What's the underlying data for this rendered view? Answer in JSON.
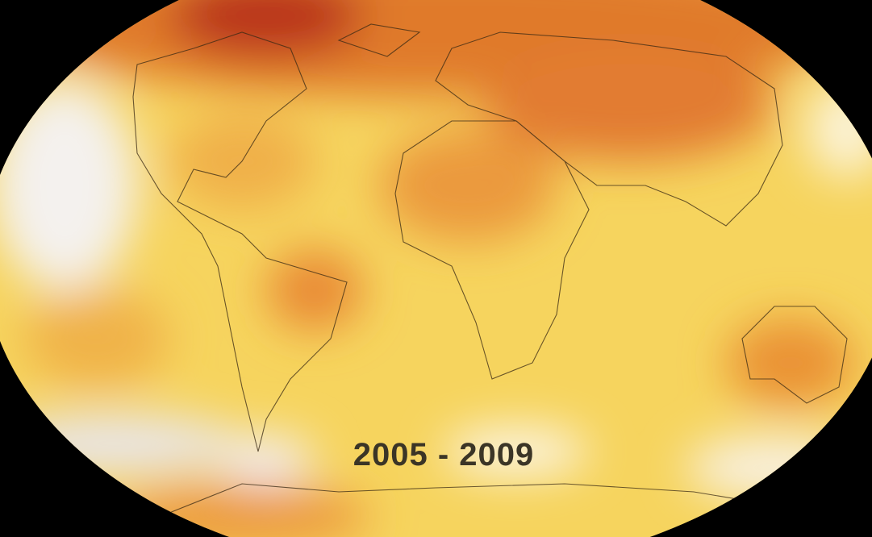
{
  "map": {
    "period_label": "2005 - 2009"
  }
}
